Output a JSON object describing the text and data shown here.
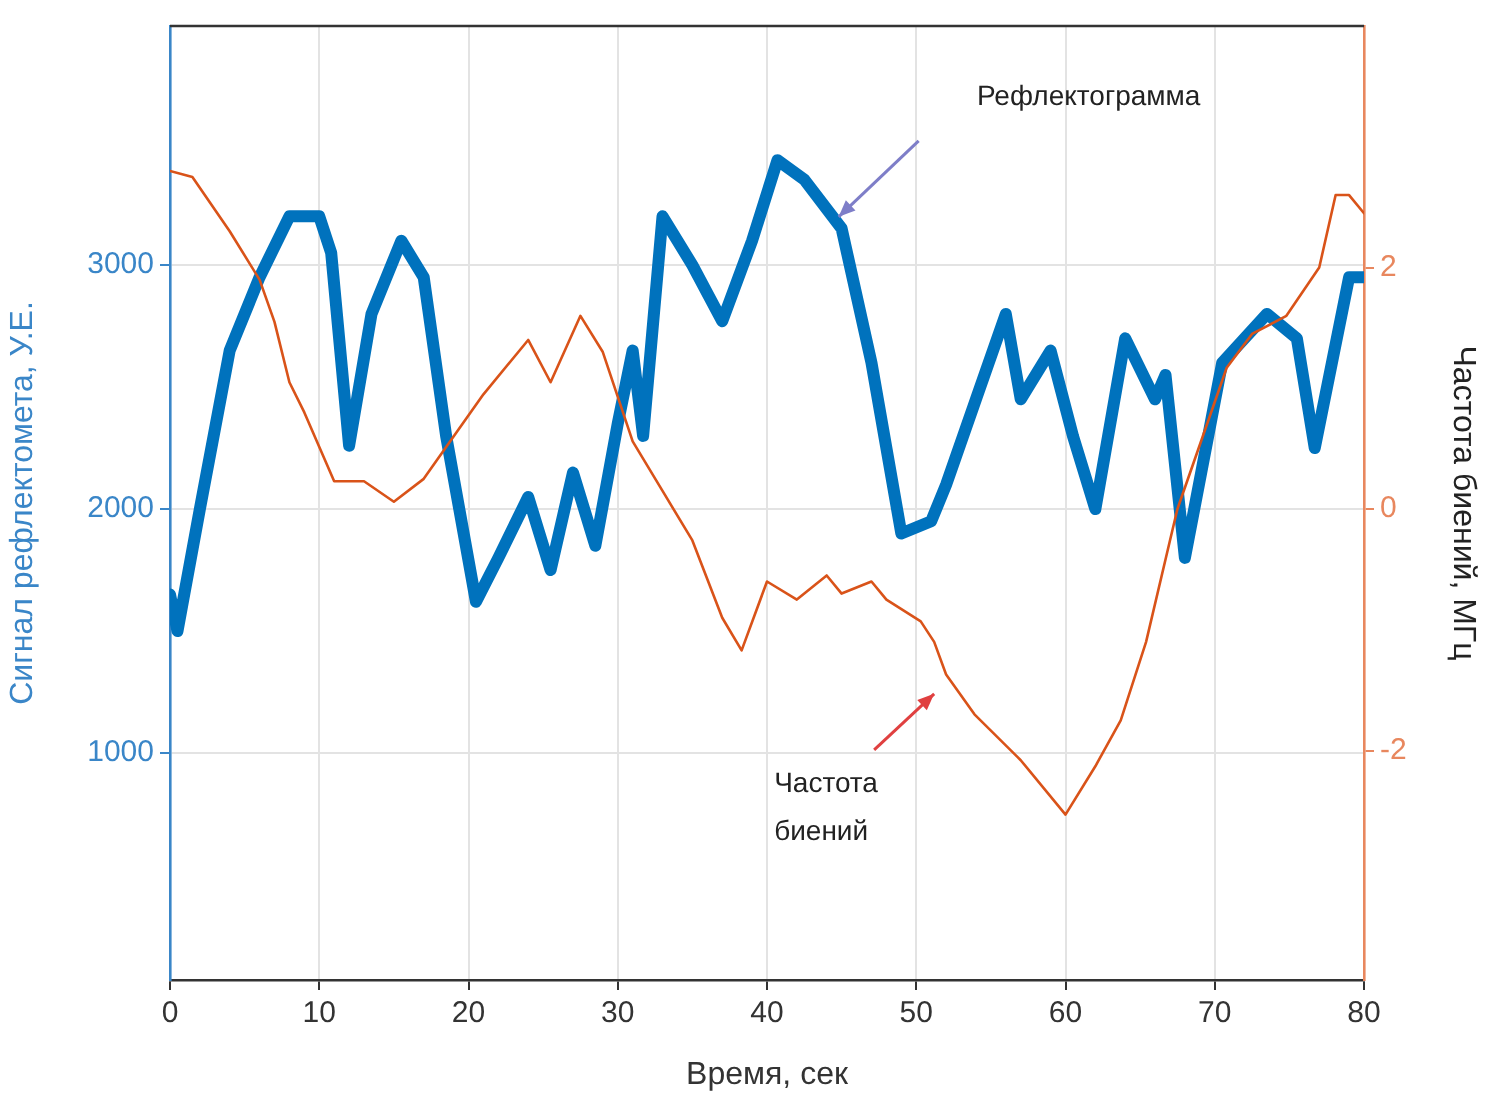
{
  "chart_data": {
    "type": "line",
    "xlabel": "Время, сек",
    "ylabel": "Сигнал рефлектомета, У.Е.",
    "y2label": "Частота биений, МГц",
    "xlim": [
      0,
      80
    ],
    "xticks": [
      0,
      10,
      20,
      30,
      40,
      50,
      60,
      70,
      80
    ],
    "ylim": [
      70,
      3980
    ],
    "yticks": [
      1000,
      2000,
      3000
    ],
    "y2lim": [
      -3.9,
      4
    ],
    "y2ticks": [
      -2,
      0,
      2
    ],
    "grid": true,
    "legend": false,
    "marker": "none",
    "line_style": "solid",
    "annotations": [
      "Рефлектограмма",
      "Частота биений"
    ],
    "series": [
      {
        "color": "#0072bd",
        "x": [
          0,
          0.5,
          2,
          4,
          6,
          8,
          10,
          10.8,
          12,
          13.5,
          15.5,
          17,
          18.5,
          20.5,
          22,
          24,
          25.5,
          27,
          28.5,
          30,
          31,
          31.7,
          33,
          35,
          37,
          39,
          40.7,
          42.5,
          45,
          47,
          49,
          51,
          52,
          54,
          56,
          57,
          59,
          60.5,
          62,
          64,
          66,
          66.7,
          68,
          70.5,
          73.5,
          75.5,
          76.7,
          79,
          80
        ],
        "values": [
          1650,
          1500,
          2000,
          2650,
          2950,
          3200,
          3200,
          3050,
          2260,
          2800,
          3100,
          2950,
          2300,
          1620,
          1800,
          2050,
          1750,
          2150,
          1850,
          2350,
          2650,
          2300,
          3200,
          3000,
          2770,
          3100,
          3430,
          3350,
          3150,
          2600,
          1900,
          1950,
          2100,
          2450,
          2800,
          2450,
          2650,
          2300,
          2000,
          2700,
          2450,
          2550,
          1800,
          2600,
          2800,
          2700,
          2250,
          2950,
          2950
        ]
      },
      {
        "color": "#d95319",
        "axis": "y2",
        "x": [
          0,
          1.5,
          4,
          6,
          7,
          8,
          9,
          11,
          13,
          15,
          17,
          19,
          21,
          24,
          25.5,
          27.5,
          29,
          31,
          33,
          35,
          37,
          38.3,
          40,
          42,
          44,
          45,
          47,
          48,
          50.3,
          51.2,
          52,
          53.9,
          57,
          60,
          62,
          63.7,
          65.4,
          67,
          67.5,
          70.8,
          72.5,
          74.8,
          77,
          78.1,
          79,
          80
        ],
        "values": [
          2.8,
          2.75,
          2.3,
          1.9,
          1.55,
          1.05,
          0.8,
          0.23,
          0.23,
          0.06,
          0.25,
          0.6,
          0.95,
          1.4,
          1.05,
          1.6,
          1.3,
          0.56,
          0.15,
          -0.26,
          -0.9,
          -1.17,
          -0.6,
          -0.75,
          -0.55,
          -0.7,
          -0.6,
          -0.75,
          -0.93,
          -1.1,
          -1.37,
          -1.7,
          -2.08,
          -2.53,
          -2.13,
          -1.75,
          -1.1,
          -0.26,
          0,
          1.17,
          1.45,
          1.6,
          2.0,
          2.6,
          2.6,
          2.45
        ]
      }
    ]
  }
}
